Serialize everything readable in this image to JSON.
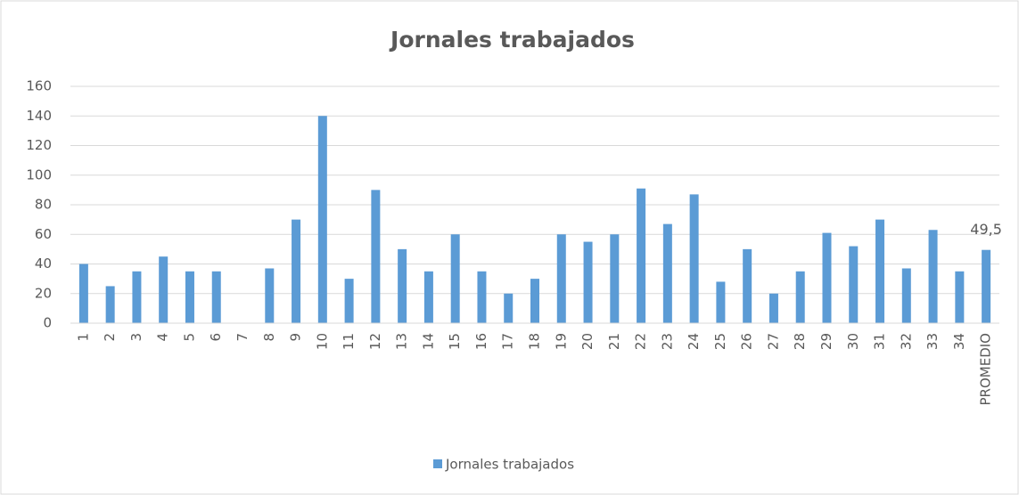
{
  "chart_data": {
    "type": "bar",
    "title": "Jornales trabajados",
    "categories": [
      "1",
      "2",
      "3",
      "4",
      "5",
      "6",
      "7",
      "8",
      "9",
      "10",
      "11",
      "12",
      "13",
      "14",
      "15",
      "16",
      "17",
      "18",
      "19",
      "20",
      "21",
      "22",
      "23",
      "24",
      "25",
      "26",
      "27",
      "28",
      "29",
      "30",
      "31",
      "32",
      "33",
      "34",
      "PROMEDIO"
    ],
    "series": [
      {
        "name": "Jornales trabajados",
        "color": "#5b9bd5",
        "values": [
          40,
          25,
          35,
          45,
          35,
          35,
          0,
          37,
          70,
          140,
          30,
          90,
          50,
          35,
          60,
          35,
          20,
          30,
          60,
          55,
          60,
          91,
          67,
          87,
          28,
          50,
          20,
          35,
          61,
          52,
          70,
          37,
          63,
          35,
          49.5
        ],
        "value_labels": [
          null,
          null,
          null,
          null,
          null,
          null,
          null,
          null,
          null,
          null,
          null,
          null,
          null,
          null,
          null,
          null,
          null,
          null,
          null,
          null,
          null,
          null,
          null,
          null,
          null,
          null,
          null,
          null,
          null,
          null,
          null,
          null,
          null,
          null,
          "49,5"
        ]
      }
    ],
    "ylim": [
      0,
      160
    ],
    "yticks": [
      0,
      20,
      40,
      60,
      80,
      100,
      120,
      140,
      160
    ],
    "grid": true,
    "legend": "bottom"
  }
}
